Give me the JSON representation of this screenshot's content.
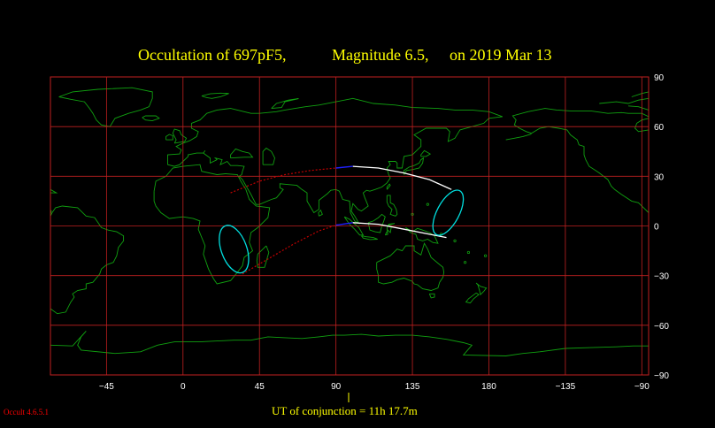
{
  "title": {
    "occultation": "Occultation  of  697pF5,",
    "magnitude": "Magnitude 6.5,",
    "date": "on  2019 Mar 13"
  },
  "axes": {
    "x_ticks": [
      "−45",
      "0",
      "45",
      "90",
      "135",
      "180",
      "−135",
      "−90"
    ],
    "x_tick_lons": [
      -45,
      0,
      45,
      90,
      135,
      180,
      225,
      270
    ],
    "y_ticks": [
      "90",
      "60",
      "30",
      "0",
      "−30",
      "−60",
      "−90"
    ],
    "y_tick_lats": [
      90,
      60,
      30,
      0,
      -30,
      -60,
      -90
    ],
    "lon_range": [
      -78,
      274
    ],
    "lat_range": [
      -90,
      90
    ]
  },
  "conjunction": {
    "label": "UT of conjunction = 11h 17.7m"
  },
  "software": {
    "version": "Occult 4.6.5.1"
  },
  "colors": {
    "background": "#000000",
    "grid": "#c02020",
    "coast": "#10a010",
    "title": "#ffff00",
    "path_day": "#ffffff",
    "path_night": "#c00000",
    "path_twilight": "#2020ff",
    "limit_ellipse": "#00e0e0"
  },
  "track": {
    "north_limit": [
      [
        28,
        20
      ],
      [
        45,
        27
      ],
      [
        60,
        31
      ],
      [
        75,
        33.5
      ],
      [
        90,
        35
      ],
      [
        100,
        36
      ],
      [
        115,
        35
      ],
      [
        130,
        32
      ],
      [
        145,
        28
      ],
      [
        158,
        22
      ]
    ],
    "south_limit": [
      [
        35,
        -29
      ],
      [
        50,
        -20
      ],
      [
        65,
        -11
      ],
      [
        80,
        -3
      ],
      [
        90,
        0.5
      ],
      [
        100,
        2
      ],
      [
        115,
        1
      ],
      [
        130,
        -2
      ],
      [
        145,
        -5
      ],
      [
        155,
        -7
      ]
    ],
    "day_start_lon": 100,
    "twilight_start_lon": 92,
    "west_ellipse": {
      "center": [
        30,
        -14
      ],
      "radius": [
        7.5,
        15
      ],
      "rotation_deg": -20
    },
    "east_ellipse": {
      "center": [
        156,
        8
      ],
      "radius": [
        6.5,
        15
      ],
      "rotation_deg": 28
    }
  }
}
